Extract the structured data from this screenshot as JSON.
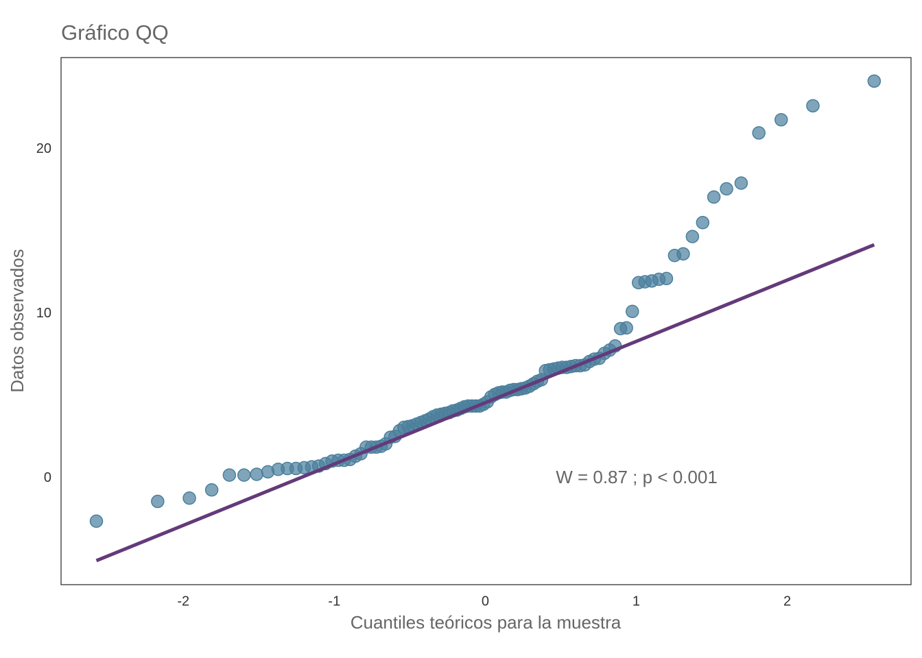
{
  "chart_data": {
    "type": "scatter",
    "title": "Gráfico QQ",
    "x_label": "Cuantiles teóricos para la muestra",
    "y_label": "Datos observados",
    "annotation": "W =  0.87 ; p  < 0.001",
    "color": "#4a7f9c",
    "x": [
      -2.576,
      -2.17,
      -1.96,
      -1.812,
      -1.695,
      -1.598,
      -1.514,
      -1.44,
      -1.372,
      -1.311,
      -1.254,
      -1.2,
      -1.15,
      -1.103,
      -1.058,
      -1.015,
      -0.974,
      -0.935,
      -0.896,
      -0.86,
      -0.824,
      -0.789,
      -0.755,
      -0.722,
      -0.69,
      -0.659,
      -0.628,
      -0.598,
      -0.568,
      -0.539,
      -0.51,
      -0.482,
      -0.454,
      -0.426,
      -0.399,
      -0.372,
      -0.345,
      -0.319,
      -0.292,
      -0.266,
      -0.24,
      -0.215,
      -0.189,
      -0.164,
      -0.138,
      -0.113,
      -0.088,
      -0.063,
      -0.038,
      -0.013,
      0.013,
      0.038,
      0.063,
      0.088,
      0.113,
      0.138,
      0.164,
      0.189,
      0.215,
      0.24,
      0.266,
      0.292,
      0.319,
      0.345,
      0.372,
      0.399,
      0.426,
      0.454,
      0.482,
      0.51,
      0.539,
      0.568,
      0.598,
      0.628,
      0.659,
      0.69,
      0.722,
      0.755,
      0.789,
      0.824,
      0.86,
      0.896,
      0.935,
      0.974,
      1.015,
      1.058,
      1.103,
      1.15,
      1.2,
      1.254,
      1.311,
      1.372,
      1.44,
      1.514,
      1.598,
      1.695,
      1.812,
      1.96,
      2.17,
      2.576
    ],
    "values": [
      -2.6,
      -1.4,
      -1.2,
      -0.7,
      0.2,
      0.2,
      0.25,
      0.4,
      0.55,
      0.6,
      0.6,
      0.65,
      0.7,
      0.75,
      0.9,
      1.05,
      1.1,
      1.1,
      1.15,
      1.35,
      1.5,
      1.9,
      1.9,
      1.9,
      1.95,
      2.1,
      2.5,
      2.55,
      2.9,
      3.1,
      3.15,
      3.2,
      3.3,
      3.4,
      3.5,
      3.6,
      3.75,
      3.85,
      3.9,
      3.95,
      4.0,
      4.1,
      4.15,
      4.25,
      4.35,
      4.4,
      4.4,
      4.4,
      4.4,
      4.5,
      4.65,
      4.95,
      5.1,
      5.2,
      5.25,
      5.25,
      5.35,
      5.4,
      5.4,
      5.45,
      5.5,
      5.6,
      5.75,
      5.9,
      6.0,
      6.55,
      6.6,
      6.65,
      6.7,
      6.75,
      6.75,
      6.8,
      6.85,
      6.85,
      6.9,
      7.1,
      7.25,
      7.3,
      7.6,
      7.8,
      8.05,
      9.1,
      9.15,
      10.15,
      11.9,
      11.95,
      12.0,
      12.1,
      12.15,
      13.55,
      13.65,
      14.7,
      15.55,
      17.1,
      17.6,
      17.95,
      21.0,
      21.8,
      22.65,
      24.15
    ],
    "line": {
      "x": [
        -2.576,
        2.576
      ],
      "values": [
        -5.0,
        14.2
      ],
      "color": "#643a7a"
    },
    "xlim": [
      -2.81,
      2.82
    ],
    "ylim": [
      -6.46,
      25.58
    ],
    "xticks": [
      -2,
      -1,
      0,
      1,
      2
    ],
    "yticks": [
      0,
      10,
      20
    ],
    "grid": false
  }
}
